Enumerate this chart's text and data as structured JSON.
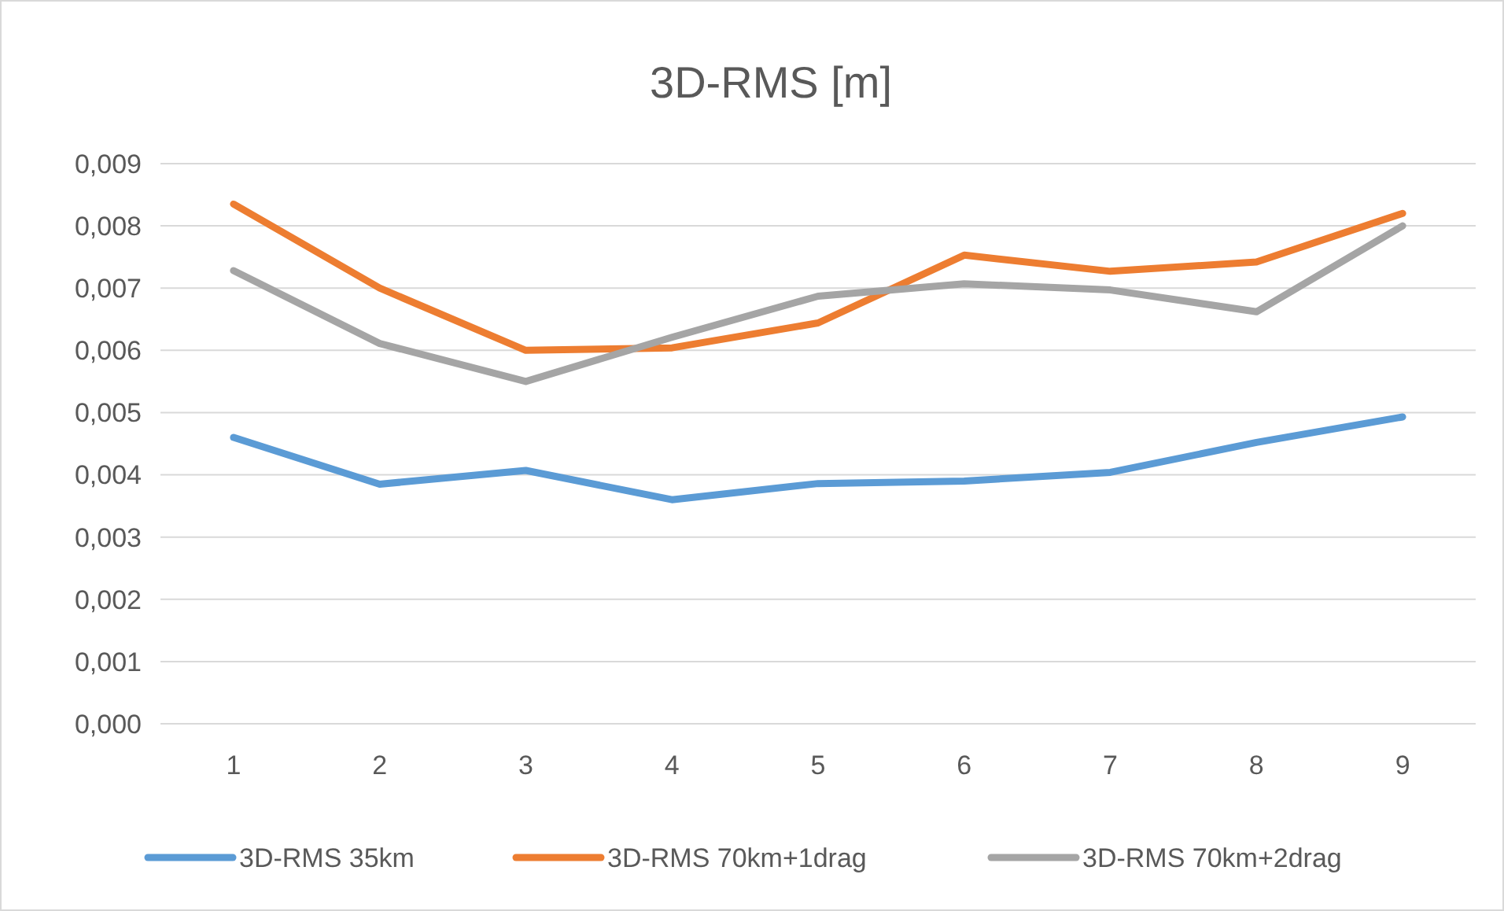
{
  "chart_data": {
    "type": "line",
    "title": "3D-RMS [m]",
    "categories": [
      "1",
      "2",
      "3",
      "4",
      "5",
      "6",
      "7",
      "8",
      "9"
    ],
    "series": [
      {
        "name": "3D-RMS 35km",
        "color": "#5b9bd5",
        "values": [
          0.0046,
          0.00385,
          0.00407,
          0.0036,
          0.00386,
          0.0039,
          0.00404,
          0.00452,
          0.00493
        ]
      },
      {
        "name": "3D-RMS 70km+1drag",
        "color": "#ed7d31",
        "values": [
          0.00835,
          0.007,
          0.006,
          0.00604,
          0.00644,
          0.00753,
          0.00727,
          0.00742,
          0.0082
        ]
      },
      {
        "name": "3D-RMS 70km+2drag",
        "color": "#a5a5a5",
        "values": [
          0.00728,
          0.00611,
          0.0055,
          0.00621,
          0.00687,
          0.00707,
          0.00697,
          0.00662,
          0.008
        ]
      }
    ],
    "ylim": [
      0,
      0.009
    ],
    "yticks": [
      {
        "value": 0,
        "label": "0,000"
      },
      {
        "value": 0.001,
        "label": "0,001"
      },
      {
        "value": 0.002,
        "label": "0,002"
      },
      {
        "value": 0.003,
        "label": "0,003"
      },
      {
        "value": 0.004,
        "label": "0,004"
      },
      {
        "value": 0.005,
        "label": "0,005"
      },
      {
        "value": 0.006,
        "label": "0,006"
      },
      {
        "value": 0.007,
        "label": "0,007"
      },
      {
        "value": 0.008,
        "label": "0,008"
      },
      {
        "value": 0.009,
        "label": "0,009"
      }
    ],
    "grid": "y",
    "legend": "bottom",
    "marker": "none",
    "line_style": "solid"
  }
}
